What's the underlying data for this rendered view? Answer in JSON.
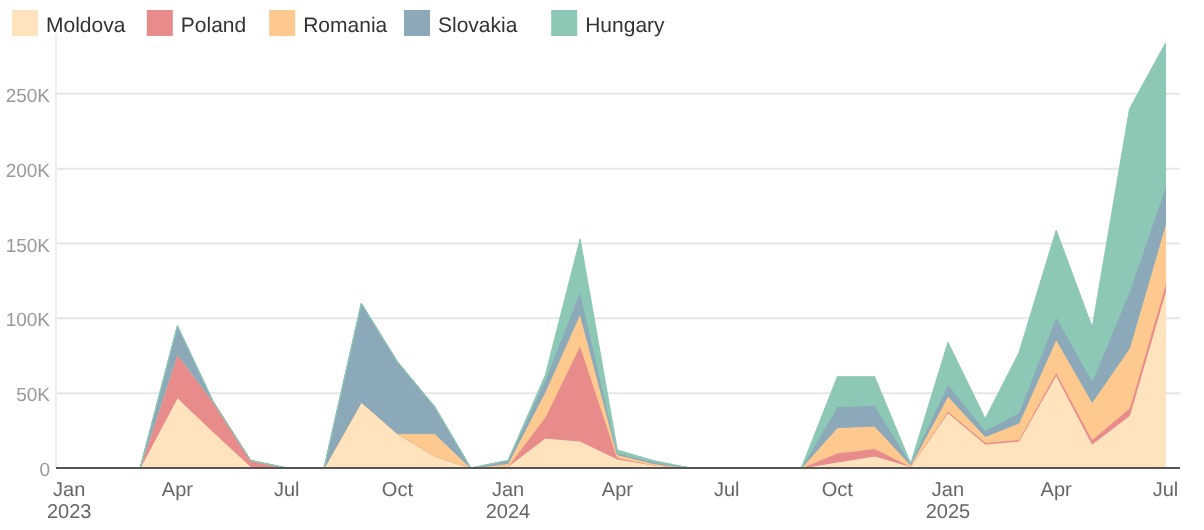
{
  "chart_data": {
    "type": "area",
    "stacked": true,
    "x": [
      "2023-01",
      "2023-02",
      "2023-03",
      "2023-04",
      "2023-05",
      "2023-06",
      "2023-07",
      "2023-08",
      "2023-09",
      "2023-10",
      "2023-11",
      "2023-12",
      "2024-01",
      "2024-02",
      "2024-03",
      "2024-04",
      "2024-05",
      "2024-06",
      "2024-07",
      "2024-08",
      "2024-09",
      "2024-10",
      "2024-11",
      "2024-12",
      "2025-01",
      "2025-02",
      "2025-03",
      "2025-04",
      "2025-05",
      "2025-06",
      "2025-07"
    ],
    "series": [
      {
        "name": "Moldova",
        "color": "#fee3bc",
        "values": [
          0,
          0,
          0,
          47,
          24,
          1,
          0,
          0,
          44,
          23,
          8,
          0,
          1,
          20,
          18,
          6,
          2,
          0,
          0,
          0,
          0,
          4,
          8,
          1,
          37,
          16,
          18,
          62,
          16,
          35,
          118
        ]
      },
      {
        "name": "Poland",
        "color": "#e88b8b",
        "values": [
          0,
          0,
          0,
          29,
          20,
          4,
          0,
          0,
          0,
          0,
          0,
          0,
          0,
          14,
          64,
          1,
          0,
          0,
          0,
          0,
          0,
          6,
          5,
          0,
          1,
          1,
          1,
          2,
          3,
          5,
          5
        ]
      },
      {
        "name": "Romania",
        "color": "#fdc98f",
        "values": [
          0,
          0,
          0,
          0,
          0,
          0,
          0,
          0,
          0,
          0,
          15,
          0,
          2,
          17,
          21,
          2,
          1,
          0,
          0,
          0,
          0,
          17,
          15,
          1,
          10,
          4,
          11,
          22,
          25,
          40,
          40
        ]
      },
      {
        "name": "Slovakia",
        "color": "#8ba9b9",
        "values": [
          0,
          0,
          0,
          19,
          0,
          0,
          0,
          0,
          66,
          48,
          18,
          0,
          2,
          8,
          15,
          1,
          1,
          0,
          0,
          0,
          0,
          14,
          14,
          1,
          8,
          4,
          7,
          15,
          14,
          38,
          25
        ]
      },
      {
        "name": "Hungary",
        "color": "#8dc7b5",
        "values": [
          0,
          0,
          0,
          0,
          0,
          0,
          0,
          0,
          0,
          0,
          0,
          0,
          0,
          3,
          35,
          2,
          1,
          0,
          0,
          0,
          0,
          20,
          19,
          0,
          28,
          8,
          40,
          58,
          36,
          122,
          96
        ]
      }
    ],
    "xlim": [
      "2022-12-21",
      "2025-07-13"
    ],
    "xticks": [
      {
        "value": "2023-01",
        "label": "Jan\n2023"
      },
      {
        "value": "2023-04",
        "label": "Apr"
      },
      {
        "value": "2023-07",
        "label": "Jul"
      },
      {
        "value": "2023-10",
        "label": "Oct"
      },
      {
        "value": "2024-01",
        "label": "Jan\n2024"
      },
      {
        "value": "2024-04",
        "label": "Apr"
      },
      {
        "value": "2024-07",
        "label": "Jul"
      },
      {
        "value": "2024-10",
        "label": "Oct"
      },
      {
        "value": "2025-01",
        "label": "Jan\n2025"
      },
      {
        "value": "2025-04",
        "label": "Apr"
      },
      {
        "value": "2025-07",
        "label": "Jul"
      }
    ],
    "ylim": [
      0,
      290
    ],
    "yticks": [
      {
        "value": 0,
        "label": "0"
      },
      {
        "value": 50,
        "label": "50K"
      },
      {
        "value": 100,
        "label": "100K"
      },
      {
        "value": 150,
        "label": "150K"
      },
      {
        "value": 200,
        "label": "200K"
      },
      {
        "value": 250,
        "label": "250K"
      }
    ],
    "grid": "y",
    "legend": "top left"
  }
}
